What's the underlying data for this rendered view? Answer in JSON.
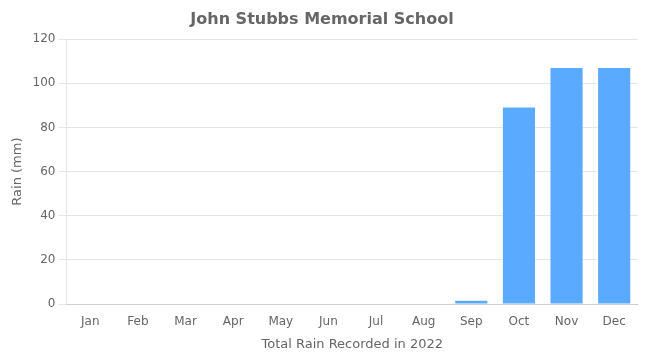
{
  "chart_data": {
    "type": "bar",
    "title": "John Stubbs Memorial School",
    "xlabel": "Total Rain Recorded in 2022",
    "ylabel": "Rain (mm)",
    "categories": [
      "Jan",
      "Feb",
      "Mar",
      "Apr",
      "May",
      "Jun",
      "Jul",
      "Aug",
      "Sep",
      "Oct",
      "Nov",
      "Dec"
    ],
    "values": [
      0,
      0,
      0,
      0,
      0,
      0,
      0,
      0,
      1.5,
      89,
      107,
      107
    ],
    "color": "#5aabff",
    "ylim": [
      0,
      120
    ],
    "yticks": [
      0,
      20,
      40,
      60,
      80,
      100,
      120
    ],
    "grid": true
  }
}
